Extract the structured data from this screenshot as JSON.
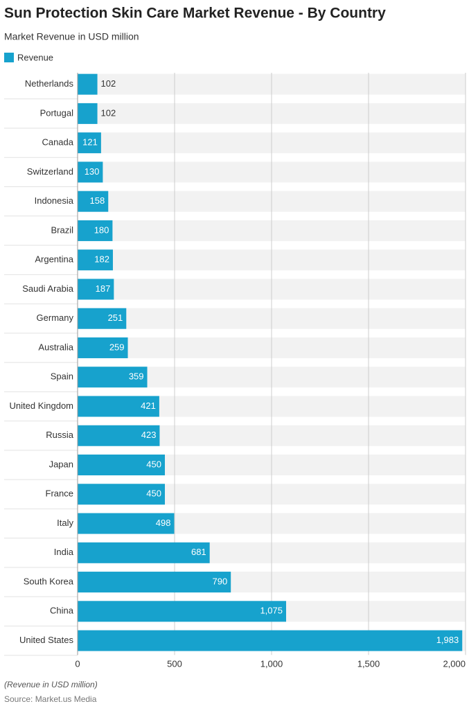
{
  "chart_data": {
    "type": "bar",
    "orientation": "horizontal",
    "title": "Sun Protection Skin Care Market Revenue - By Country",
    "subtitle": "Market Revenue in USD million",
    "categories": [
      "Netherlands",
      "Portugal",
      "Canada",
      "Switzerland",
      "Indonesia",
      "Brazil",
      "Argentina",
      "Saudi Arabia",
      "Germany",
      "Australia",
      "Spain",
      "United Kingdom",
      "Russia",
      "Japan",
      "France",
      "Italy",
      "India",
      "South Korea",
      "China",
      "United States"
    ],
    "series": [
      {
        "name": "Revenue",
        "color": "#17a2cd",
        "values": [
          102,
          102,
          121,
          130,
          158,
          180,
          182,
          187,
          251,
          259,
          359,
          421,
          423,
          450,
          450,
          498,
          681,
          790,
          1075,
          1983
        ],
        "value_labels": [
          "102",
          "102",
          "121",
          "130",
          "158",
          "180",
          "182",
          "187",
          "251",
          "259",
          "359",
          "421",
          "423",
          "450",
          "450",
          "498",
          "681",
          "790",
          "1,075",
          "1,983"
        ]
      }
    ],
    "xlim": [
      0,
      2000
    ],
    "xticks": [
      0,
      500,
      {
        "value": 1000,
        "label": "1,000"
      },
      {
        "value": 1500,
        "label": "1,500"
      },
      {
        "value": 2000,
        "label": "2,000"
      }
    ],
    "grid": true,
    "note": "(Revenue in USD million)",
    "source": "Source: Market.us Media"
  }
}
